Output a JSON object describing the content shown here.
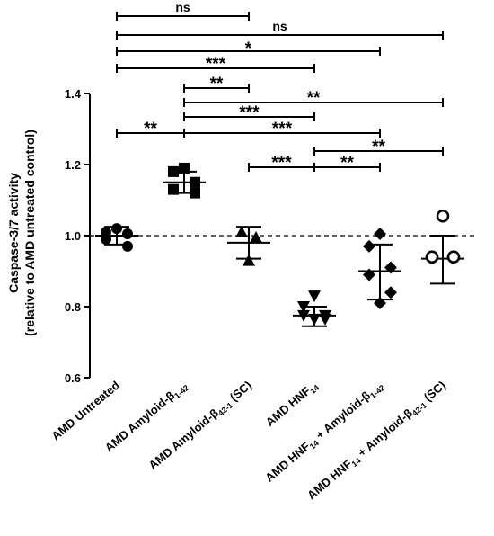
{
  "chart_data": {
    "type": "scatter",
    "title": "",
    "xlabel": "",
    "ylabel_line1": "Caspase-3/7 activity",
    "ylabel_line2": "(relative to AMD untreated control)",
    "ylim": [
      0.6,
      1.4
    ],
    "yticks": [
      "0.6",
      "0.8",
      "1.0",
      "1.2",
      "1.4"
    ],
    "reference_line": 1.0,
    "grid": false,
    "groups": [
      {
        "label": "AMD Untreated",
        "label_base": "AMD Untreated",
        "marker": "circle",
        "filled": true,
        "mean": 1.0,
        "error_high": 1.025,
        "error_low": 0.975,
        "points": [
          1.01,
          1.02,
          1.005,
          0.99,
          0.97
        ]
      },
      {
        "label": "AMD Amyloid-β1-42",
        "label_base": "AMD Amyloid-β",
        "label_sub": "1-42",
        "marker": "square",
        "filled": true,
        "mean": 1.15,
        "error_high": 1.18,
        "error_low": 1.12,
        "points": [
          1.18,
          1.19,
          1.15,
          1.13,
          1.12
        ]
      },
      {
        "label": "AMD Amyloid-β42-1 (SC)",
        "label_base": "AMD Amyloid-β",
        "label_sub": "42-1",
        "label_suffix": " (SC)",
        "marker": "triangle-up",
        "filled": true,
        "mean": 0.98,
        "error_high": 1.025,
        "error_low": 0.935,
        "points": [
          1.01,
          0.995,
          0.93
        ]
      },
      {
        "label": "AMD HNF14",
        "label_base": "AMD HNF",
        "label_sub": "14",
        "marker": "triangle-down",
        "filled": true,
        "mean": 0.775,
        "error_high": 0.8,
        "error_low": 0.745,
        "points": [
          0.83,
          0.8,
          0.775,
          0.775,
          0.765,
          0.765
        ]
      },
      {
        "label": "AMD HNF14 + Amyloid-β1-42",
        "label_base": "AMD HNF",
        "label_sub": "14",
        "label_mid": " + Amyloid-β",
        "label_sub2": "1-42",
        "marker": "diamond",
        "filled": true,
        "mean": 0.9,
        "error_high": 0.975,
        "error_low": 0.82,
        "points": [
          1.005,
          0.97,
          0.91,
          0.89,
          0.84,
          0.81
        ]
      },
      {
        "label": "AMD HNF14 + Amyloid-β42-1 (SC)",
        "label_base": "AMD HNF",
        "label_sub": "14",
        "label_mid": " + Amyloid-β",
        "label_sub2": "42-1",
        "label_suffix": " (SC)",
        "marker": "circle",
        "filled": false,
        "mean": 0.935,
        "error_high": 1.0,
        "error_low": 0.865,
        "points": [
          1.055,
          0.94,
          0.94,
          0.94,
          0.94
        ]
      }
    ],
    "annotations": [
      {
        "from": 0,
        "to": 2,
        "label": "ns"
      },
      {
        "from": 0,
        "to": 5,
        "label": "ns"
      },
      {
        "from": 0,
        "to": 4,
        "label": "*"
      },
      {
        "from": 0,
        "to": 3,
        "label": "***"
      },
      {
        "from": 1,
        "to": 2,
        "label": "**"
      },
      {
        "from": 1,
        "to": 5,
        "label": "**"
      },
      {
        "from": 1,
        "to": 3,
        "label": "***"
      },
      {
        "from": 1,
        "to": 4,
        "label": "***"
      },
      {
        "from": 0,
        "to": 1,
        "label": "**"
      },
      {
        "from": 3,
        "to": 5,
        "label": "**"
      },
      {
        "from": 2,
        "to": 3,
        "label": "***"
      },
      {
        "from": 3,
        "to": 4,
        "label": "**"
      }
    ]
  }
}
